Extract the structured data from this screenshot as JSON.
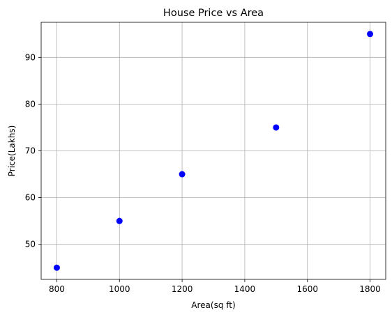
{
  "chart_data": {
    "type": "scatter",
    "title": "House Price vs Area",
    "xlabel": "Area(sq ft)",
    "ylabel": "Price(Lakhs)",
    "x": [
      800,
      1000,
      1200,
      1500,
      1800
    ],
    "y": [
      45,
      55,
      65,
      75,
      95
    ],
    "xlim": [
      750,
      1850
    ],
    "ylim": [
      42.5,
      97.5
    ],
    "xticks": [
      800,
      1000,
      1200,
      1400,
      1600,
      1800
    ],
    "yticks": [
      50,
      60,
      70,
      80,
      90
    ],
    "grid": true,
    "marker_color": "#0000ff",
    "grid_color": "#b0b0b0"
  }
}
